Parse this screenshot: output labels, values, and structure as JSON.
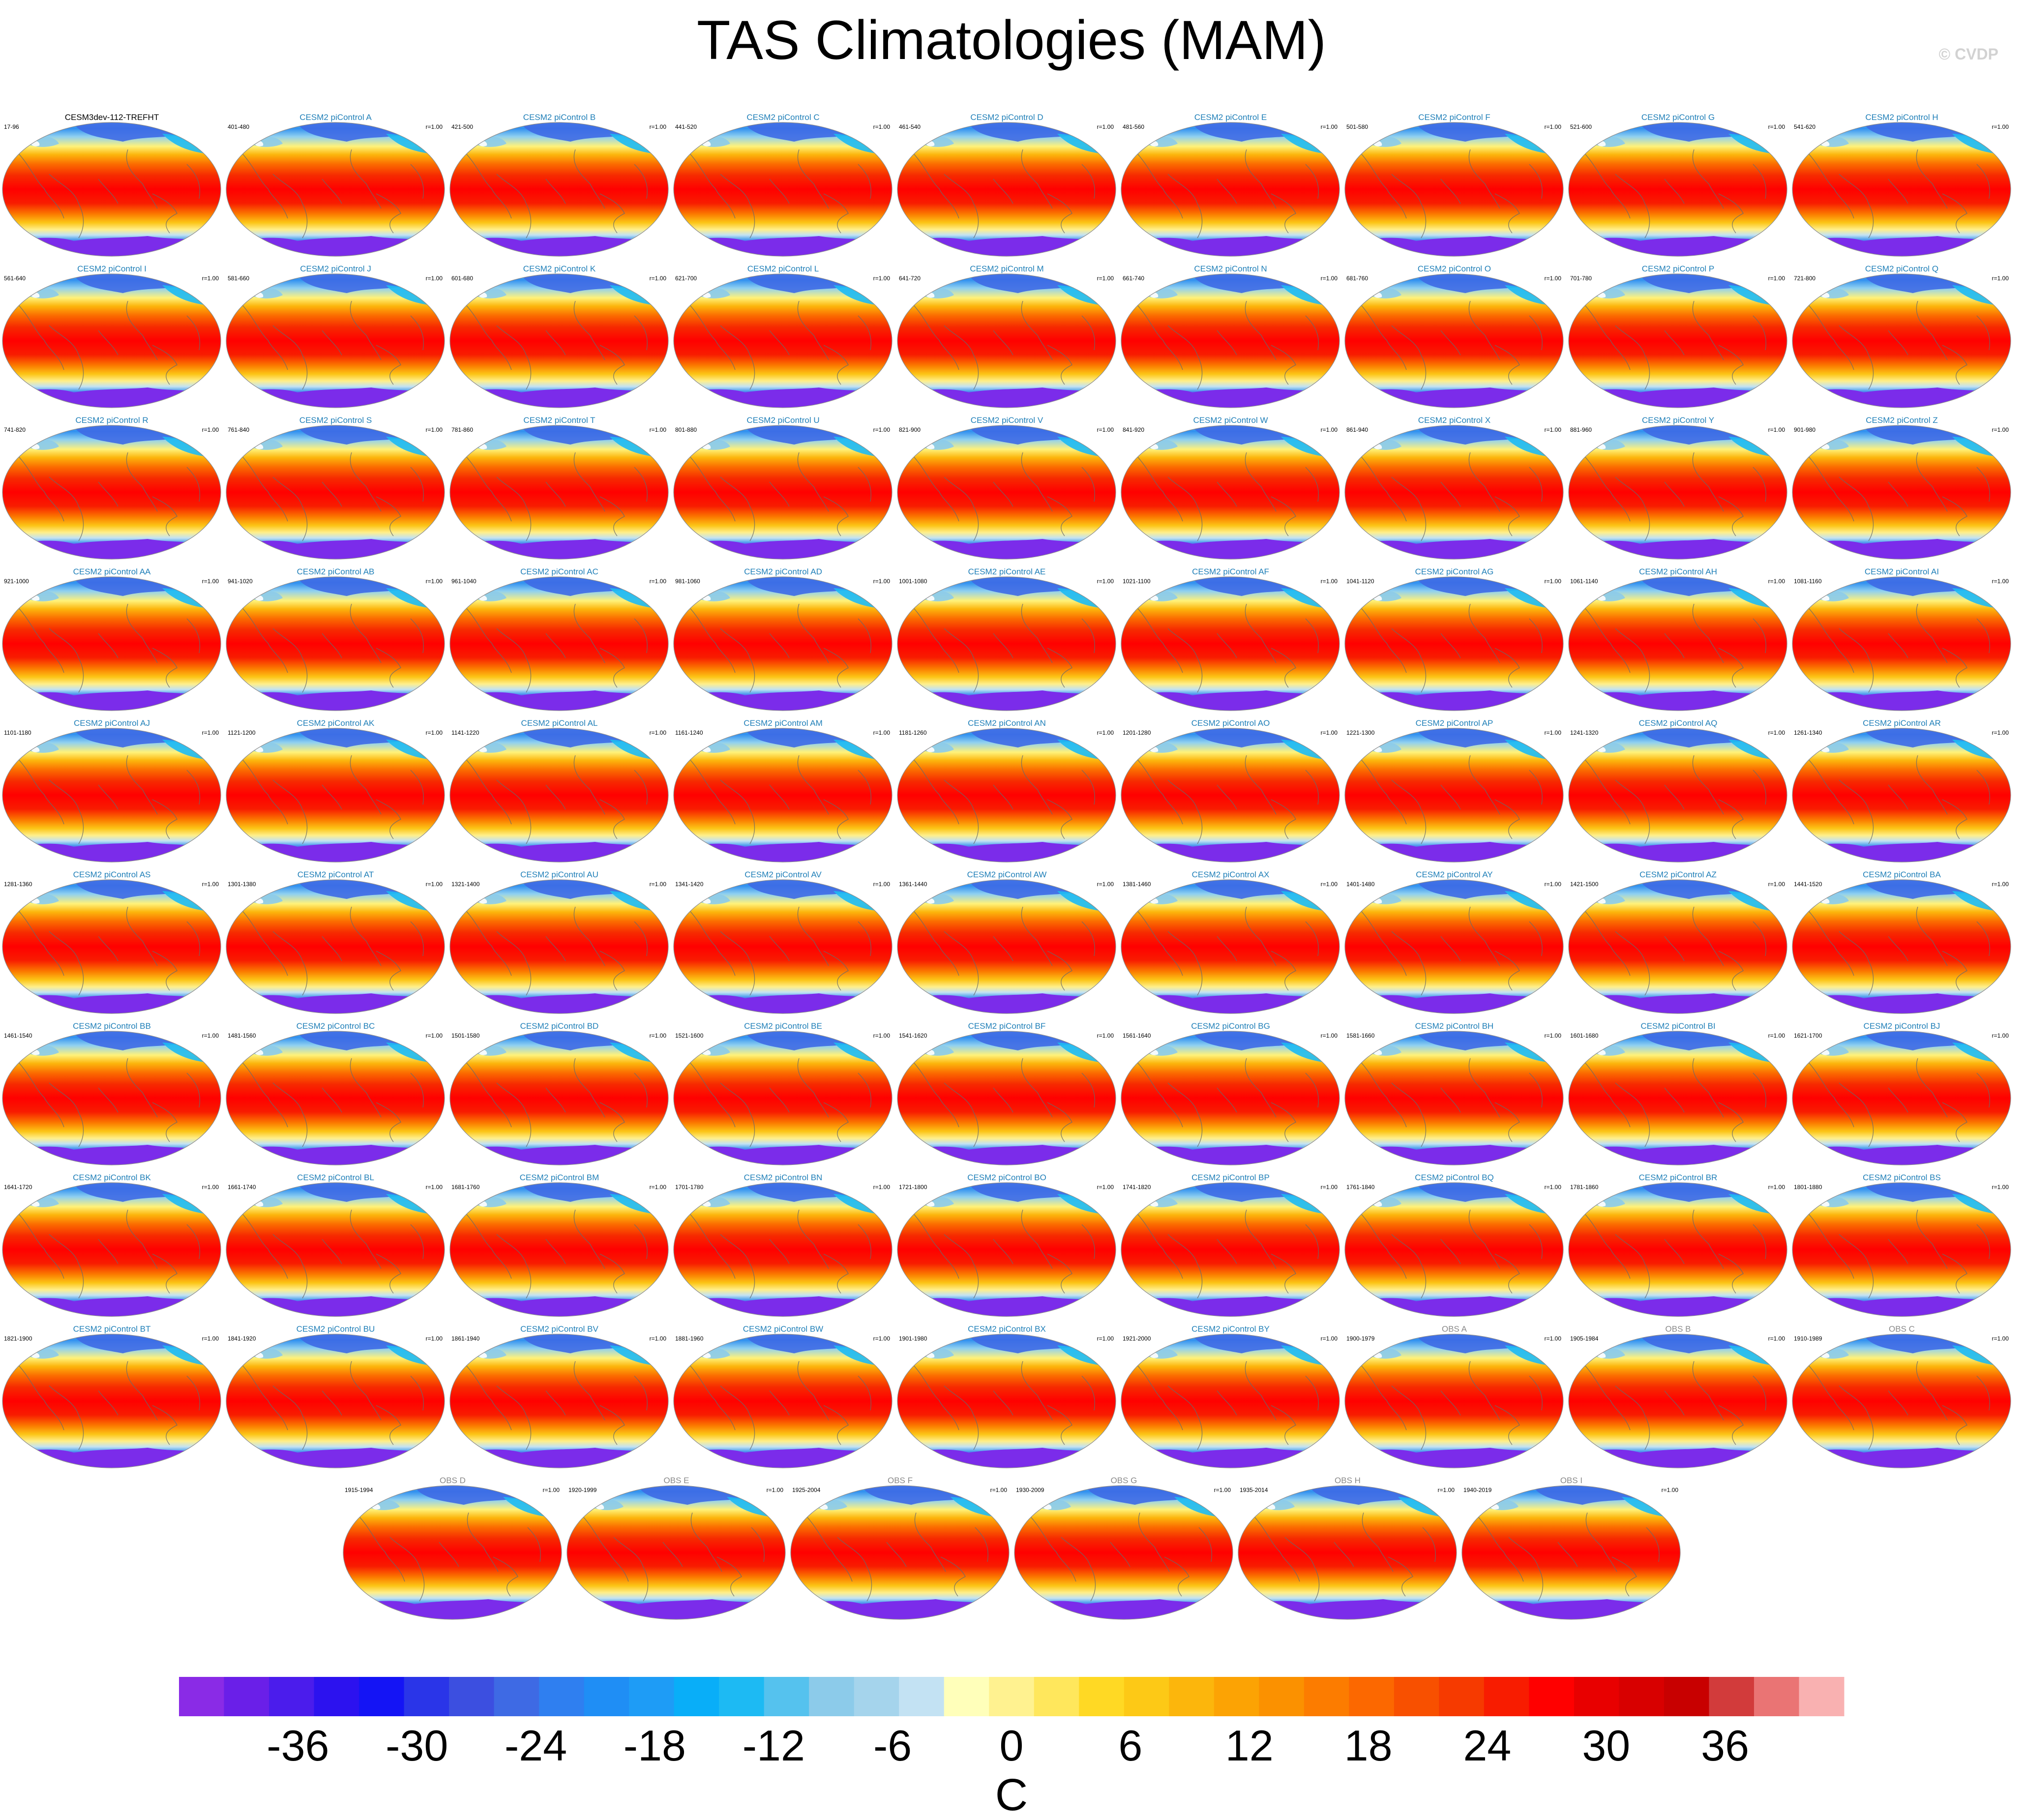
{
  "figure": {
    "title": "TAS Climatologies (MAM)",
    "copyright": "© CVDP"
  },
  "colors": {
    "model_title": "#1f7fb8",
    "obs_title": "#8a8a8a",
    "first_title": "#000000",
    "coast": "#6a6a6a",
    "outline": "#8c8c8c"
  },
  "chart_data": {
    "type": "heatmap",
    "description_units": "C",
    "variable": "TAS",
    "season": "MAM",
    "panels": [
      {
        "title": "CESM3dev-112-TREFHT",
        "years": "17-96",
        "corr": "",
        "kind": "ref"
      },
      {
        "title": "CESM2 piControl A",
        "years": "401-480",
        "corr": "r=1.00",
        "kind": "model"
      },
      {
        "title": "CESM2 piControl B",
        "years": "421-500",
        "corr": "r=1.00",
        "kind": "model"
      },
      {
        "title": "CESM2 piControl C",
        "years": "441-520",
        "corr": "r=1.00",
        "kind": "model"
      },
      {
        "title": "CESM2 piControl D",
        "years": "461-540",
        "corr": "r=1.00",
        "kind": "model"
      },
      {
        "title": "CESM2 piControl E",
        "years": "481-560",
        "corr": "r=1.00",
        "kind": "model"
      },
      {
        "title": "CESM2 piControl F",
        "years": "501-580",
        "corr": "r=1.00",
        "kind": "model"
      },
      {
        "title": "CESM2 piControl G",
        "years": "521-600",
        "corr": "r=1.00",
        "kind": "model"
      },
      {
        "title": "CESM2 piControl H",
        "years": "541-620",
        "corr": "r=1.00",
        "kind": "model"
      },
      {
        "title": "CESM2 piControl I",
        "years": "561-640",
        "corr": "r=1.00",
        "kind": "model"
      },
      {
        "title": "CESM2 piControl J",
        "years": "581-660",
        "corr": "r=1.00",
        "kind": "model"
      },
      {
        "title": "CESM2 piControl K",
        "years": "601-680",
        "corr": "r=1.00",
        "kind": "model"
      },
      {
        "title": "CESM2 piControl L",
        "years": "621-700",
        "corr": "r=1.00",
        "kind": "model"
      },
      {
        "title": "CESM2 piControl M",
        "years": "641-720",
        "corr": "r=1.00",
        "kind": "model"
      },
      {
        "title": "CESM2 piControl N",
        "years": "661-740",
        "corr": "r=1.00",
        "kind": "model"
      },
      {
        "title": "CESM2 piControl O",
        "years": "681-760",
        "corr": "r=1.00",
        "kind": "model"
      },
      {
        "title": "CESM2 piControl P",
        "years": "701-780",
        "corr": "r=1.00",
        "kind": "model"
      },
      {
        "title": "CESM2 piControl Q",
        "years": "721-800",
        "corr": "r=1.00",
        "kind": "model"
      },
      {
        "title": "CESM2 piControl R",
        "years": "741-820",
        "corr": "r=1.00",
        "kind": "model"
      },
      {
        "title": "CESM2 piControl S",
        "years": "761-840",
        "corr": "r=1.00",
        "kind": "model"
      },
      {
        "title": "CESM2 piControl T",
        "years": "781-860",
        "corr": "r=1.00",
        "kind": "model"
      },
      {
        "title": "CESM2 piControl U",
        "years": "801-880",
        "corr": "r=1.00",
        "kind": "model"
      },
      {
        "title": "CESM2 piControl V",
        "years": "821-900",
        "corr": "r=1.00",
        "kind": "model"
      },
      {
        "title": "CESM2 piControl W",
        "years": "841-920",
        "corr": "r=1.00",
        "kind": "model"
      },
      {
        "title": "CESM2 piControl X",
        "years": "861-940",
        "corr": "r=1.00",
        "kind": "model"
      },
      {
        "title": "CESM2 piControl Y",
        "years": "881-960",
        "corr": "r=1.00",
        "kind": "model"
      },
      {
        "title": "CESM2 piControl Z",
        "years": "901-980",
        "corr": "r=1.00",
        "kind": "model"
      },
      {
        "title": "CESM2 piControl AA",
        "years": "921-1000",
        "corr": "r=1.00",
        "kind": "model"
      },
      {
        "title": "CESM2 piControl AB",
        "years": "941-1020",
        "corr": "r=1.00",
        "kind": "model"
      },
      {
        "title": "CESM2 piControl AC",
        "years": "961-1040",
        "corr": "r=1.00",
        "kind": "model"
      },
      {
        "title": "CESM2 piControl AD",
        "years": "981-1060",
        "corr": "r=1.00",
        "kind": "model"
      },
      {
        "title": "CESM2 piControl AE",
        "years": "1001-1080",
        "corr": "r=1.00",
        "kind": "model"
      },
      {
        "title": "CESM2 piControl AF",
        "years": "1021-1100",
        "corr": "r=1.00",
        "kind": "model"
      },
      {
        "title": "CESM2 piControl AG",
        "years": "1041-1120",
        "corr": "r=1.00",
        "kind": "model"
      },
      {
        "title": "CESM2 piControl AH",
        "years": "1061-1140",
        "corr": "r=1.00",
        "kind": "model"
      },
      {
        "title": "CESM2 piControl AI",
        "years": "1081-1160",
        "corr": "r=1.00",
        "kind": "model"
      },
      {
        "title": "CESM2 piControl AJ",
        "years": "1101-1180",
        "corr": "r=1.00",
        "kind": "model"
      },
      {
        "title": "CESM2 piControl AK",
        "years": "1121-1200",
        "corr": "r=1.00",
        "kind": "model"
      },
      {
        "title": "CESM2 piControl AL",
        "years": "1141-1220",
        "corr": "r=1.00",
        "kind": "model"
      },
      {
        "title": "CESM2 piControl AM",
        "years": "1161-1240",
        "corr": "r=1.00",
        "kind": "model"
      },
      {
        "title": "CESM2 piControl AN",
        "years": "1181-1260",
        "corr": "r=1.00",
        "kind": "model"
      },
      {
        "title": "CESM2 piControl AO",
        "years": "1201-1280",
        "corr": "r=1.00",
        "kind": "model"
      },
      {
        "title": "CESM2 piControl AP",
        "years": "1221-1300",
        "corr": "r=1.00",
        "kind": "model"
      },
      {
        "title": "CESM2 piControl AQ",
        "years": "1241-1320",
        "corr": "r=1.00",
        "kind": "model"
      },
      {
        "title": "CESM2 piControl AR",
        "years": "1261-1340",
        "corr": "r=1.00",
        "kind": "model"
      },
      {
        "title": "CESM2 piControl AS",
        "years": "1281-1360",
        "corr": "r=1.00",
        "kind": "model"
      },
      {
        "title": "CESM2 piControl AT",
        "years": "1301-1380",
        "corr": "r=1.00",
        "kind": "model"
      },
      {
        "title": "CESM2 piControl AU",
        "years": "1321-1400",
        "corr": "r=1.00",
        "kind": "model"
      },
      {
        "title": "CESM2 piControl AV",
        "years": "1341-1420",
        "corr": "r=1.00",
        "kind": "model"
      },
      {
        "title": "CESM2 piControl AW",
        "years": "1361-1440",
        "corr": "r=1.00",
        "kind": "model"
      },
      {
        "title": "CESM2 piControl AX",
        "years": "1381-1460",
        "corr": "r=1.00",
        "kind": "model"
      },
      {
        "title": "CESM2 piControl AY",
        "years": "1401-1480",
        "corr": "r=1.00",
        "kind": "model"
      },
      {
        "title": "CESM2 piControl AZ",
        "years": "1421-1500",
        "corr": "r=1.00",
        "kind": "model"
      },
      {
        "title": "CESM2 piControl BA",
        "years": "1441-1520",
        "corr": "r=1.00",
        "kind": "model"
      },
      {
        "title": "CESM2 piControl BB",
        "years": "1461-1540",
        "corr": "r=1.00",
        "kind": "model"
      },
      {
        "title": "CESM2 piControl BC",
        "years": "1481-1560",
        "corr": "r=1.00",
        "kind": "model"
      },
      {
        "title": "CESM2 piControl BD",
        "years": "1501-1580",
        "corr": "r=1.00",
        "kind": "model"
      },
      {
        "title": "CESM2 piControl BE",
        "years": "1521-1600",
        "corr": "r=1.00",
        "kind": "model"
      },
      {
        "title": "CESM2 piControl BF",
        "years": "1541-1620",
        "corr": "r=1.00",
        "kind": "model"
      },
      {
        "title": "CESM2 piControl BG",
        "years": "1561-1640",
        "corr": "r=1.00",
        "kind": "model"
      },
      {
        "title": "CESM2 piControl BH",
        "years": "1581-1660",
        "corr": "r=1.00",
        "kind": "model"
      },
      {
        "title": "CESM2 piControl BI",
        "years": "1601-1680",
        "corr": "r=1.00",
        "kind": "model"
      },
      {
        "title": "CESM2 piControl BJ",
        "years": "1621-1700",
        "corr": "r=1.00",
        "kind": "model"
      },
      {
        "title": "CESM2 piControl BK",
        "years": "1641-1720",
        "corr": "r=1.00",
        "kind": "model"
      },
      {
        "title": "CESM2 piControl BL",
        "years": "1661-1740",
        "corr": "r=1.00",
        "kind": "model"
      },
      {
        "title": "CESM2 piControl BM",
        "years": "1681-1760",
        "corr": "r=1.00",
        "kind": "model"
      },
      {
        "title": "CESM2 piControl BN",
        "years": "1701-1780",
        "corr": "r=1.00",
        "kind": "model"
      },
      {
        "title": "CESM2 piControl BO",
        "years": "1721-1800",
        "corr": "r=1.00",
        "kind": "model"
      },
      {
        "title": "CESM2 piControl BP",
        "years": "1741-1820",
        "corr": "r=1.00",
        "kind": "model"
      },
      {
        "title": "CESM2 piControl BQ",
        "years": "1761-1840",
        "corr": "r=1.00",
        "kind": "model"
      },
      {
        "title": "CESM2 piControl BR",
        "years": "1781-1860",
        "corr": "r=1.00",
        "kind": "model"
      },
      {
        "title": "CESM2 piControl BS",
        "years": "1801-1880",
        "corr": "r=1.00",
        "kind": "model"
      },
      {
        "title": "CESM2 piControl BT",
        "years": "1821-1900",
        "corr": "r=1.00",
        "kind": "model"
      },
      {
        "title": "CESM2 piControl BU",
        "years": "1841-1920",
        "corr": "r=1.00",
        "kind": "model"
      },
      {
        "title": "CESM2 piControl BV",
        "years": "1861-1940",
        "corr": "r=1.00",
        "kind": "model"
      },
      {
        "title": "CESM2 piControl BW",
        "years": "1881-1960",
        "corr": "r=1.00",
        "kind": "model"
      },
      {
        "title": "CESM2 piControl BX",
        "years": "1901-1980",
        "corr": "r=1.00",
        "kind": "model"
      },
      {
        "title": "CESM2 piControl BY",
        "years": "1921-2000",
        "corr": "r=1.00",
        "kind": "model"
      },
      {
        "title": "OBS A",
        "years": "1900-1979",
        "corr": "r=1.00",
        "kind": "obs"
      },
      {
        "title": "OBS B",
        "years": "1905-1984",
        "corr": "r=1.00",
        "kind": "obs"
      },
      {
        "title": "OBS C",
        "years": "1910-1989",
        "corr": "r=1.00",
        "kind": "obs"
      },
      {
        "title": "OBS D",
        "years": "1915-1994",
        "corr": "r=1.00",
        "kind": "obs"
      },
      {
        "title": "OBS E",
        "years": "1920-1999",
        "corr": "r=1.00",
        "kind": "obs"
      },
      {
        "title": "OBS F",
        "years": "1925-2004",
        "corr": "r=1.00",
        "kind": "obs"
      },
      {
        "title": "OBS G",
        "years": "1930-2009",
        "corr": "r=1.00",
        "kind": "obs"
      },
      {
        "title": "OBS H",
        "years": "1935-2014",
        "corr": "r=1.00",
        "kind": "obs"
      },
      {
        "title": "OBS I",
        "years": "1940-2019",
        "corr": "r=1.00",
        "kind": "obs"
      }
    ],
    "colorbar": {
      "title": "C",
      "ticks": [
        "-36",
        "-30",
        "-24",
        "-18",
        "-12",
        "-6",
        "0",
        "6",
        "12",
        "18",
        "24",
        "30",
        "36"
      ],
      "tick_values": [
        -36,
        -30,
        -24,
        -18,
        -12,
        -6,
        0,
        6,
        12,
        18,
        24,
        30,
        36
      ],
      "range": [
        -42,
        42
      ],
      "step": 2,
      "colors": [
        "#8a2be6",
        "#6a1fe8",
        "#4b1cec",
        "#2c12ef",
        "#1414f5",
        "#2a35e8",
        "#3c4fe0",
        "#3e6ae4",
        "#2f7ff0",
        "#1f8ef5",
        "#1e9cf6",
        "#09aef8",
        "#1dbaf3",
        "#55c2ee",
        "#8ccbea",
        "#a5d4ec",
        "#c3e2f3",
        "#ffffba",
        "#fff290",
        "#ffe75c",
        "#ffd924",
        "#fdc916",
        "#fcb60c",
        "#fca304",
        "#fb9100",
        "#fc7c00",
        "#fc6800",
        "#f85000",
        "#f63a00",
        "#f81c00",
        "#ff0000",
        "#e80000",
        "#d80000",
        "#c80000",
        "#d23b3b",
        "#ea7474",
        "#f9b1b1"
      ]
    }
  }
}
